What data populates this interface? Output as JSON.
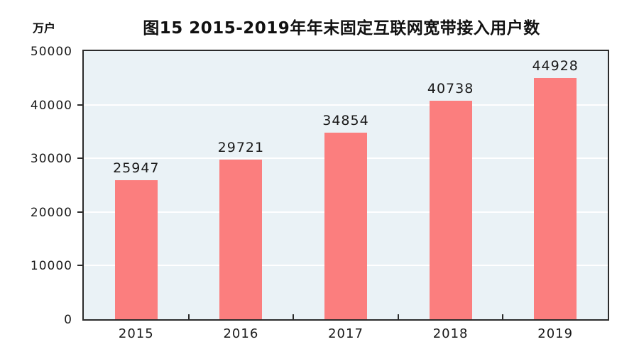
{
  "chart_data": {
    "type": "bar",
    "title": "图15 2015-2019年年末固定互联网宽带接入用户数",
    "unit_label": "万户",
    "categories": [
      "2015",
      "2016",
      "2017",
      "2018",
      "2019"
    ],
    "values": [
      25947,
      29721,
      34854,
      40738,
      44928
    ],
    "value_labels": [
      "25947",
      "29721",
      "34854",
      "40738",
      "44928"
    ],
    "ylim": [
      0,
      50000
    ],
    "y_ticks": [
      0,
      10000,
      20000,
      30000,
      40000,
      50000
    ],
    "y_tick_labels": [
      "0",
      "10000",
      "20000",
      "30000",
      "40000",
      "50000"
    ],
    "xlabel": "",
    "ylabel": "万户",
    "grid": "horizontal white gridlines at each 10000",
    "legend": "none",
    "colors": {
      "bar": "#FB7E7E",
      "plot_background": "#EAF2F6",
      "gridline": "#FFFFFF",
      "axis_frame": "#2B2B2B",
      "text": "#1A1A1A",
      "page_background": "#FFFFFF"
    }
  }
}
